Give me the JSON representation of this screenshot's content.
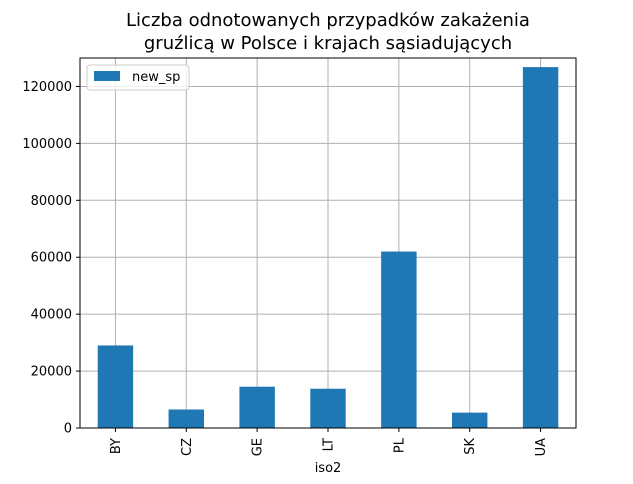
{
  "chart_data": {
    "type": "bar",
    "title_lines": [
      "Liczba odnotowanych przypadków zakażenia",
      "gruźlicą w Polsce i krajach sąsiadujących"
    ],
    "xlabel": "iso2",
    "ylabel": "",
    "categories": [
      "BY",
      "CZ",
      "GE",
      "LT",
      "PL",
      "SK",
      "UA"
    ],
    "series": [
      {
        "name": "new_sp",
        "values": [
          29000,
          6500,
          14500,
          13800,
          62000,
          5400,
          126800
        ],
        "color": "#1f77b4"
      }
    ],
    "ylim": [
      0,
      130000
    ],
    "yticks": [
      0,
      20000,
      40000,
      60000,
      80000,
      100000,
      120000
    ],
    "grid": true,
    "legend_position": "top-left"
  }
}
